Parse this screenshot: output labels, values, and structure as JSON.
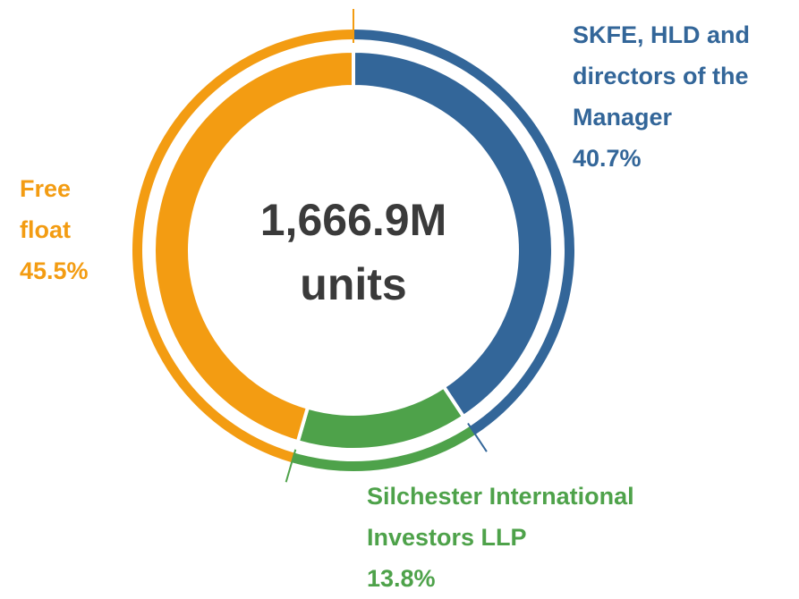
{
  "chart_data": {
    "type": "donut",
    "center_text": "1,666.9M units",
    "categories": [
      "SKFE, HLD and directors of the Manager",
      "Silchester International Investors LLP",
      "Free float"
    ],
    "values": [
      40.7,
      13.8,
      45.5
    ],
    "value_labels": [
      "40.7%",
      "13.8%",
      "45.5%"
    ],
    "colors": [
      "#336699",
      "#4ea24a",
      "#f39c12"
    ]
  }
}
